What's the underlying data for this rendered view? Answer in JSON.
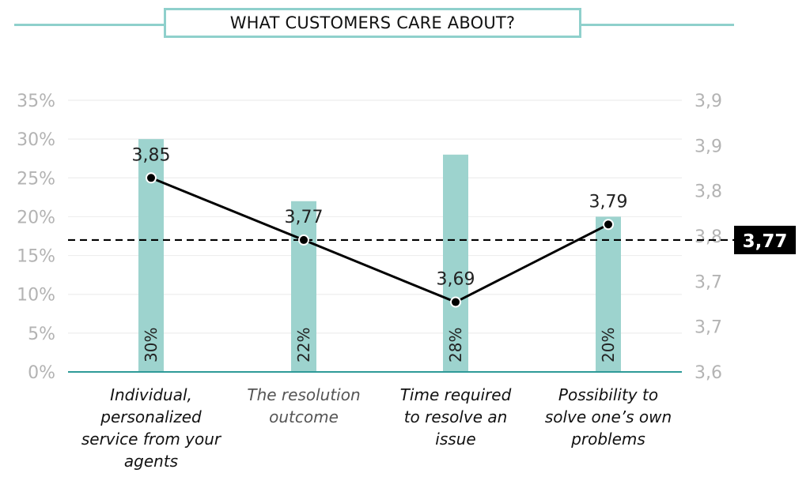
{
  "title": "WHAT CUSTOMERS CARE ABOUT?",
  "chart_data": {
    "type": "bar",
    "categories": [
      "Individual, personalized service from your agents",
      "The resolution outcome",
      "Time required to resolve an issue",
      "Possibility to solve one’s own problems"
    ],
    "category_lines": [
      [
        "Individual,",
        "personalized",
        "service from your",
        "agents"
      ],
      [
        "The resolution",
        "outcome"
      ],
      [
        "Time required",
        "to resolve an",
        "issue"
      ],
      [
        "Possibility to",
        "solve one’s own",
        "problems"
      ]
    ],
    "category_emphasis": [
      "dark",
      "light",
      "dark",
      "dark"
    ],
    "bars": {
      "values": [
        30,
        22,
        28,
        20
      ],
      "labels": [
        "30%",
        "22%",
        "28%",
        "20%"
      ],
      "axis": "left",
      "color": "#9dd3ce"
    },
    "line": {
      "values": [
        3.85,
        3.77,
        3.69,
        3.79
      ],
      "labels": [
        "3,85",
        "3,77",
        "3,69",
        "3,79"
      ],
      "axis": "right",
      "color": "#000000"
    },
    "reference_line": {
      "value": 3.77,
      "label": "3,77",
      "style": "dashed"
    },
    "left_axis": {
      "ylim": [
        0,
        35
      ],
      "ticks": [
        "0%",
        "5%",
        "10%",
        "15%",
        "20%",
        "25%",
        "30%",
        "35%"
      ]
    },
    "right_axis": {
      "ylim": [
        3.6,
        3.95
      ],
      "ticks": [
        "3,6",
        "3,7",
        "3,7",
        "3,8",
        "3,8",
        "3,9",
        "3,9"
      ]
    },
    "grid": true,
    "colors": {
      "accent": "#8fd0cc",
      "baseline": "#2e9a98",
      "axis_text": "#b3b3b3",
      "grid": "#eeeeee"
    }
  }
}
